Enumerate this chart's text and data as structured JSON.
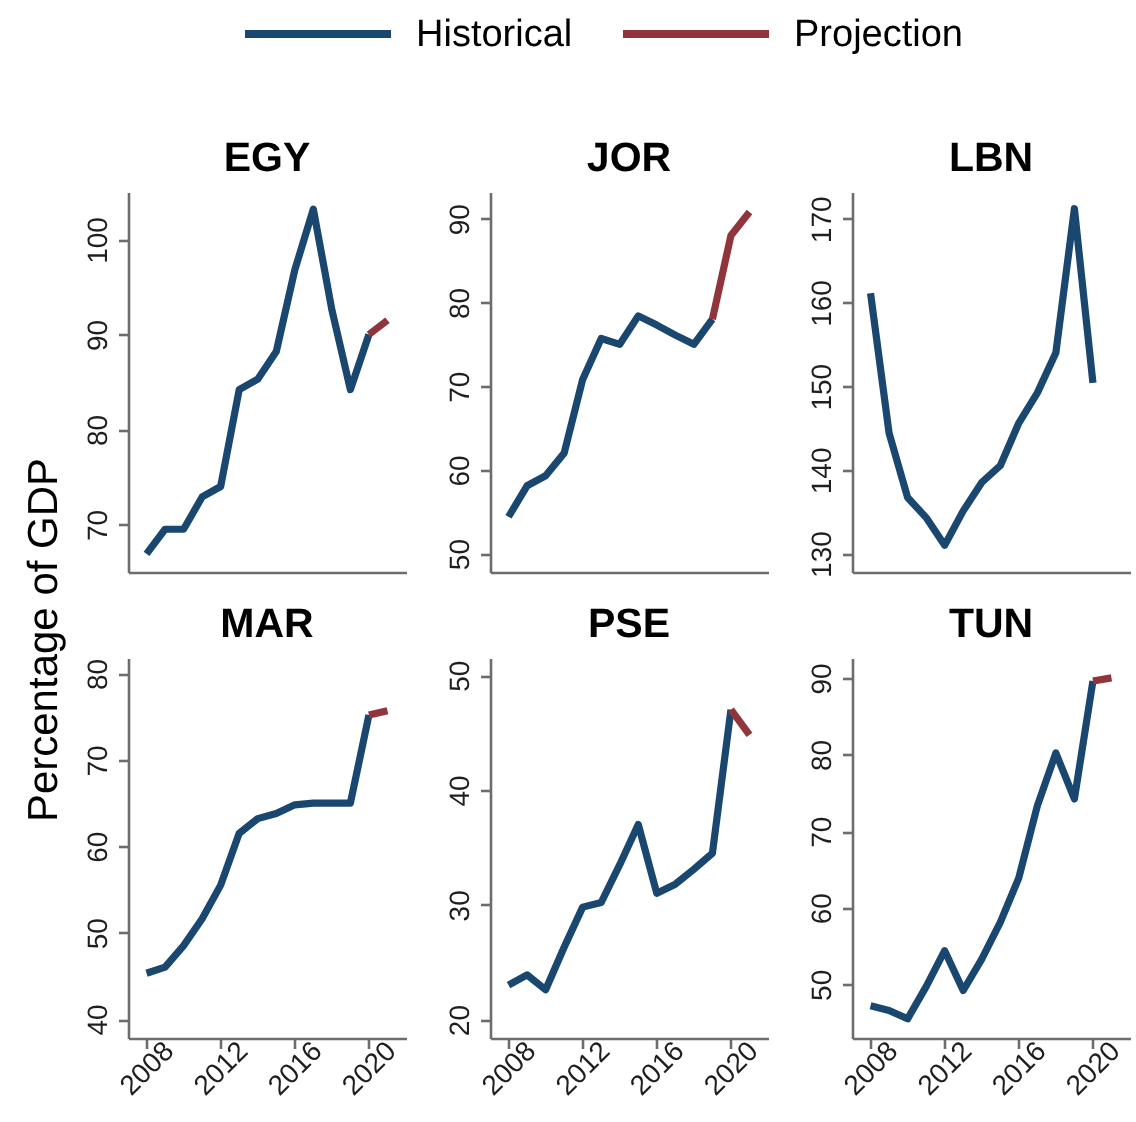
{
  "chart_data": [
    {
      "type": "line",
      "title": "EGY",
      "ylabel": "Percentage of GDP",
      "legend": "top",
      "x": [
        2008,
        2009,
        2010,
        2011,
        2012,
        2013,
        2014,
        2015,
        2016,
        2017,
        2018,
        2019,
        2020,
        2021
      ],
      "xlim": [
        2007,
        2022
      ],
      "ylim": [
        65,
        105
      ],
      "yticks": [
        70,
        80,
        90,
        100
      ],
      "tick_labels": "y",
      "series": [
        {
          "name": "Historical",
          "color": "#1a476f",
          "values": [
            66.9,
            69.5,
            69.5,
            72.9,
            74.0,
            84.2,
            85.3,
            88.2,
            96.8,
            103.2,
            92.6,
            84.2,
            90.0,
            null
          ]
        },
        {
          "name": "Projection",
          "color": "#90353b",
          "values": [
            null,
            null,
            null,
            null,
            null,
            null,
            null,
            null,
            null,
            null,
            null,
            null,
            90.0,
            91.5
          ]
        }
      ]
    },
    {
      "type": "line",
      "title": "JOR",
      "x": [
        2008,
        2009,
        2010,
        2011,
        2012,
        2013,
        2014,
        2015,
        2016,
        2017,
        2018,
        2019,
        2020,
        2021
      ],
      "xlim": [
        2007,
        2022
      ],
      "ylim": [
        47.8,
        93.2
      ],
      "yticks": [
        50,
        60,
        70,
        80,
        90
      ],
      "tick_labels": "y",
      "series": [
        {
          "color": "#1a476f",
          "values": [
            54.4,
            58.1,
            59.3,
            62.0,
            70.8,
            75.7,
            75.0,
            78.4,
            77.3,
            76.1,
            75.0,
            78.0,
            null,
            null
          ]
        },
        {
          "color": "#90353b",
          "values": [
            null,
            null,
            null,
            null,
            null,
            null,
            null,
            null,
            null,
            null,
            null,
            78.0,
            88.0,
            90.8
          ]
        }
      ]
    },
    {
      "type": "line",
      "title": "LBN",
      "x": [
        2008,
        2009,
        2010,
        2011,
        2012,
        2013,
        2014,
        2015,
        2016,
        2017,
        2018,
        2019,
        2020
      ],
      "xlim": [
        2007,
        2022
      ],
      "ylim": [
        127.8,
        173.2
      ],
      "yticks": [
        130,
        140,
        150,
        160,
        170
      ],
      "tick_labels": "y",
      "series": [
        {
          "color": "#1a476f",
          "values": [
            161.1,
            144.4,
            136.7,
            134.3,
            131.0,
            135.1,
            138.5,
            140.5,
            145.6,
            149.2,
            154.0,
            171.2,
            150.4
          ]
        }
      ]
    },
    {
      "type": "line",
      "title": "MAR",
      "x": [
        2008,
        2009,
        2010,
        2011,
        2012,
        2013,
        2014,
        2015,
        2016,
        2017,
        2018,
        2019,
        2020,
        2021
      ],
      "xlim": [
        2007,
        2022
      ],
      "xticks": [
        2008,
        2012,
        2016,
        2020
      ],
      "ylim": [
        37.8,
        81.8
      ],
      "yticks": [
        40,
        50,
        60,
        70,
        80
      ],
      "series": [
        {
          "color": "#1a476f",
          "values": [
            45.3,
            46.0,
            48.5,
            51.6,
            55.5,
            61.5,
            63.2,
            63.8,
            64.8,
            65.0,
            65.0,
            65.0,
            75.2,
            null
          ]
        },
        {
          "color": "#90353b",
          "values": [
            null,
            null,
            null,
            null,
            null,
            null,
            null,
            null,
            null,
            null,
            null,
            null,
            75.2,
            75.7
          ]
        }
      ]
    },
    {
      "type": "line",
      "title": "PSE",
      "x": [
        2008,
        2009,
        2010,
        2011,
        2012,
        2013,
        2014,
        2015,
        2016,
        2017,
        2018,
        2019,
        2020,
        2021
      ],
      "xlim": [
        2007,
        2022
      ],
      "xticks": [
        2008,
        2012,
        2016,
        2020
      ],
      "ylim": [
        18.4,
        51.5
      ],
      "yticks": [
        20,
        30,
        40,
        50
      ],
      "series": [
        {
          "color": "#1a476f",
          "values": [
            23.0,
            23.9,
            22.6,
            26.3,
            29.8,
            30.2,
            33.5,
            37.0,
            31.0,
            31.8,
            33.1,
            34.5,
            47.0,
            null
          ]
        },
        {
          "color": "#90353b",
          "values": [
            null,
            null,
            null,
            null,
            null,
            null,
            null,
            null,
            null,
            null,
            null,
            null,
            47.0,
            44.8
          ]
        }
      ]
    },
    {
      "type": "line",
      "title": "TUN",
      "x": [
        2008,
        2009,
        2010,
        2011,
        2012,
        2013,
        2014,
        2015,
        2016,
        2017,
        2018,
        2019,
        2020,
        2021
      ],
      "xlim": [
        2007,
        2022
      ],
      "xticks": [
        2008,
        2012,
        2016,
        2020
      ],
      "ylim": [
        43,
        92.6
      ],
      "yticks": [
        50,
        60,
        70,
        80,
        90
      ],
      "series": [
        {
          "color": "#1a476f",
          "values": [
            47.2,
            46.6,
            45.5,
            49.7,
            54.4,
            49.2,
            53.3,
            58.1,
            63.9,
            73.3,
            80.2,
            74.2,
            89.6,
            null
          ]
        },
        {
          "color": "#90353b",
          "values": [
            null,
            null,
            null,
            null,
            null,
            null,
            null,
            null,
            null,
            null,
            null,
            null,
            89.6,
            90.0
          ]
        }
      ]
    }
  ]
}
